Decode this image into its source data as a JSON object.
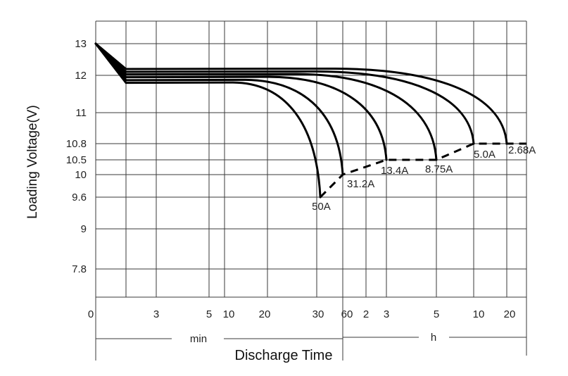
{
  "chart_data": {
    "type": "line",
    "title": "",
    "ylabel": "Loading  Voltage(V)",
    "xlabel": "Discharge Time",
    "x_unit_min": "min",
    "x_unit_h": "h",
    "y_ticks": [
      "13",
      "12",
      "11",
      "10.8",
      "10.5",
      "10",
      "9.6",
      "9",
      "7.8"
    ],
    "x_ticks": [
      "0",
      "3",
      "5",
      "10",
      "20",
      "30",
      "60",
      "2",
      "3",
      "5",
      "10",
      "20"
    ],
    "grid": true,
    "series": [
      {
        "name": "50A",
        "end_minutes": 33,
        "end_voltage": 9.6
      },
      {
        "name": "31.2A",
        "end_minutes": 60,
        "end_voltage": 10.0
      },
      {
        "name": "13.4A",
        "end_minutes": 180,
        "end_voltage": 10.5
      },
      {
        "name": "8.75A",
        "end_minutes": 300,
        "end_voltage": 10.5
      },
      {
        "name": "5.0A",
        "end_minutes": 600,
        "end_voltage": 10.8
      },
      {
        "name": "2.68A",
        "end_minutes": 1200,
        "end_voltage": 10.8
      }
    ]
  }
}
